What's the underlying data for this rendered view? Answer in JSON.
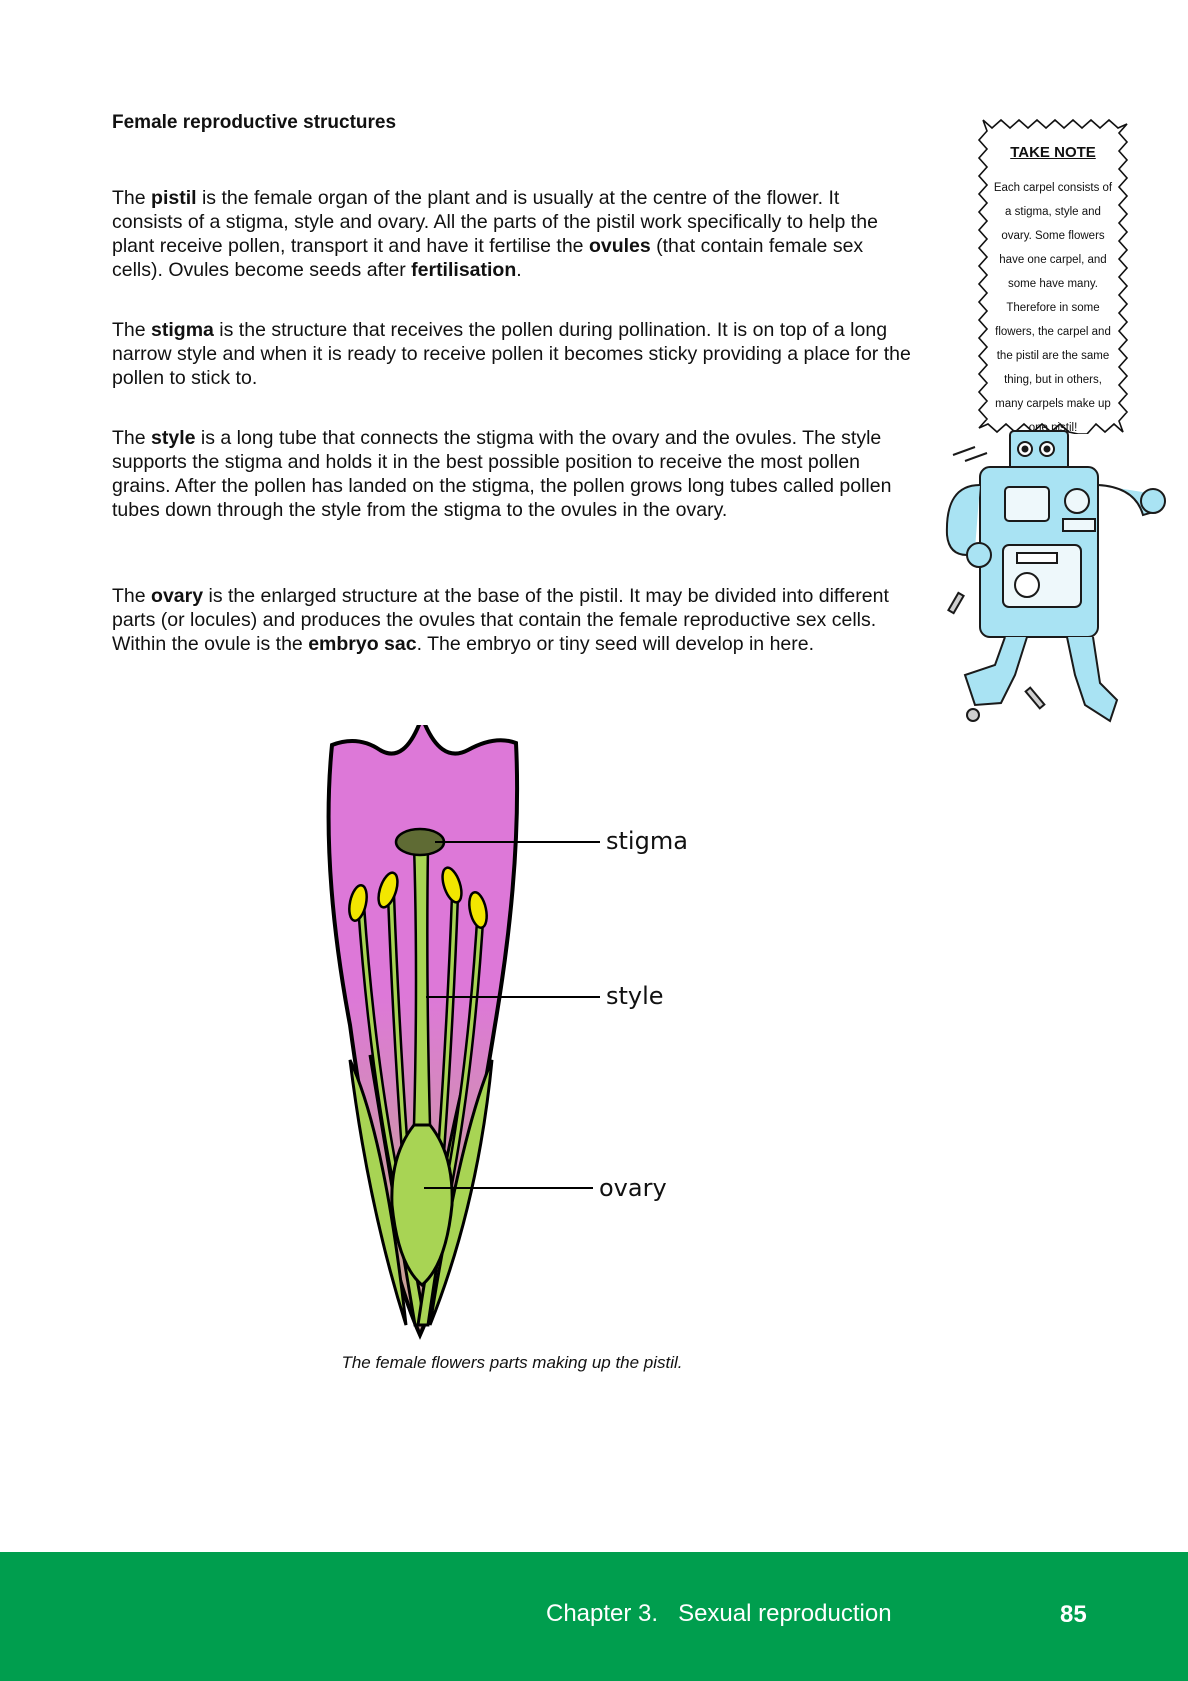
{
  "section_title": "Female reproductive structures",
  "paragraphs": {
    "pistil": {
      "p1": "The ",
      "b1": "pistil",
      "p2": " is the female organ of the plant and is usually at the centre of the flower. It consists of a stigma, style and ovary. All the parts of the pistil work specifically to help the plant receive pollen, transport it and have it fertilise the ",
      "b2": "ovules",
      "p3": " (that contain female sex cells). Ovules become seeds after ",
      "b3": "fertilisation",
      "p4": "."
    },
    "stigma": {
      "p1": "The ",
      "b1": "stigma",
      "p2": " is the structure that receives the pollen during pollination. It is on top of a long narrow style and when it is ready to receive pollen it becomes sticky providing a place for the pollen to stick to."
    },
    "style": {
      "p1": "The ",
      "b1": "style",
      "p2": " is a long tube that connects the stigma with the ovary and the ovules. The style supports the stigma and holds it in the best possible position to receive the most pollen grains. After the pollen has landed on the stigma, the pollen grows long tubes called pollen tubes down through the style from the stigma to the ovules in the ovary."
    },
    "ovary": {
      "p1": "The ",
      "b1": "ovary",
      "p2": " is the enlarged structure at the base of the pistil. It may be divided into different parts (or locules) and produces the ovules that contain the female reproductive sex cells. Within the ovule is the ",
      "b2": "embryo sac",
      "p3": ". The embryo or tiny seed will develop in here."
    }
  },
  "take_note": {
    "title": "TAKE NOTE",
    "body": "Each carpel consists of a stigma, style and ovary. Some flowers have one carpel, and some have many. Therefore in some flowers, the carpel and the pistil are the same thing, but in others, many carpels make up one pistil!"
  },
  "diagram": {
    "labels": {
      "stigma": "stigma",
      "style": "style",
      "ovary": "ovary"
    },
    "colors": {
      "petal_top": "#dd78d8",
      "petal_bottom": "#c9a098",
      "sepal": "#a8d454",
      "stigma": "#5f6b34",
      "anther": "#f2e600"
    }
  },
  "caption": "The female flowers parts making up the pistil.",
  "footer": {
    "chapter": "Chapter 3.   Sexual reproduction",
    "page_number": "85",
    "color": "#009e4e"
  }
}
